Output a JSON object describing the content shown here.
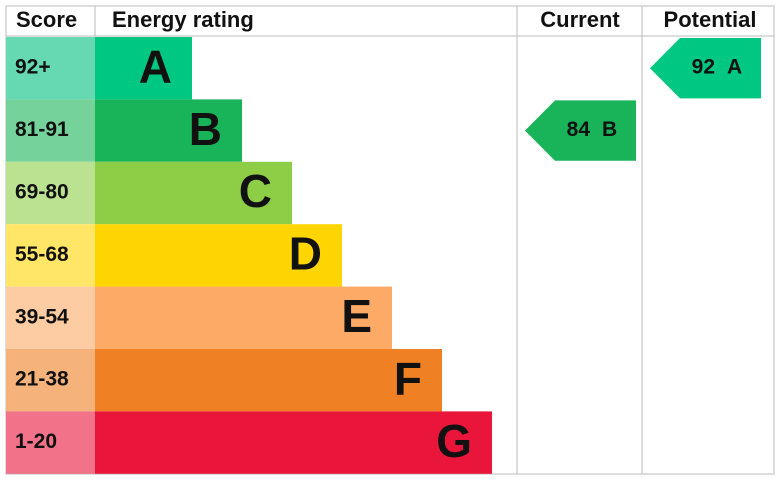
{
  "header": {
    "score": "Score",
    "rating": "Energy rating",
    "current": "Current",
    "potential": "Potential"
  },
  "bands": [
    {
      "score": "92+",
      "letter": "A",
      "color": "#00c781",
      "score_color": "#66d9b3"
    },
    {
      "score": "81-91",
      "letter": "B",
      "color": "#19b459",
      "score_color": "#75d29b"
    },
    {
      "score": "69-80",
      "letter": "C",
      "color": "#8dce46",
      "score_color": "#bbe290"
    },
    {
      "score": "55-68",
      "letter": "D",
      "color": "#ffd500",
      "score_color": "#ffe666"
    },
    {
      "score": "39-54",
      "letter": "E",
      "color": "#fcaa65",
      "score_color": "#fdcca3"
    },
    {
      "score": "21-38",
      "letter": "F",
      "color": "#ef8023",
      "score_color": "#f5b27b"
    },
    {
      "score": "1-20",
      "letter": "G",
      "color": "#e9153b",
      "score_color": "#f27389"
    }
  ],
  "current": {
    "value": 84,
    "letter": "B"
  },
  "potential": {
    "value": 92,
    "letter": "A"
  }
}
